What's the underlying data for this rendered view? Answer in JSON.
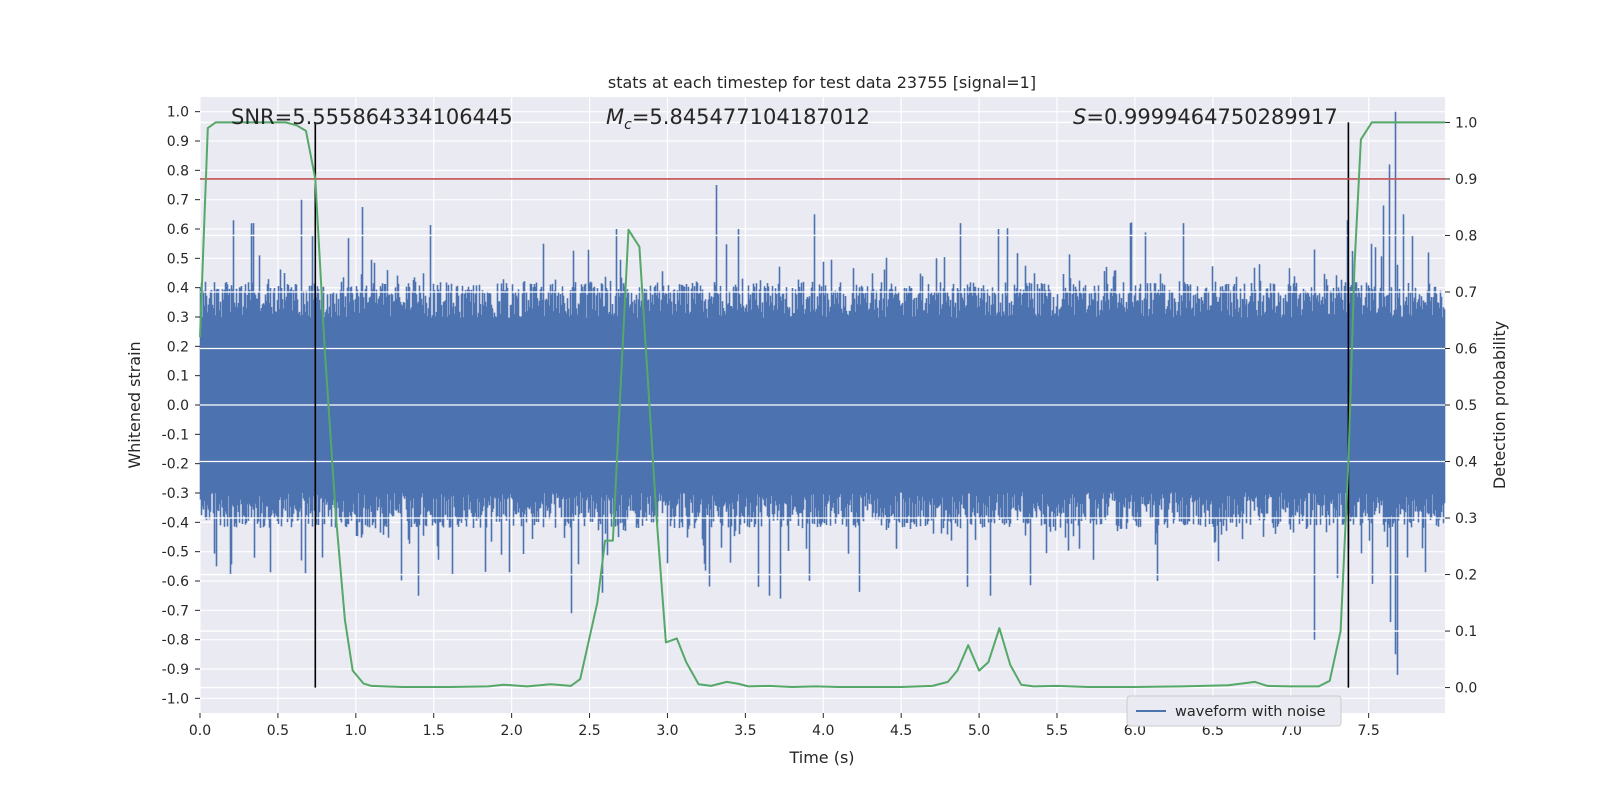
{
  "chart_data": {
    "type": "line",
    "title": "stats at each timestep for test data 23755 [signal=1]",
    "xlabel": "Time (s)",
    "ylabel": "Whitened strain",
    "y2label": "Detection probability",
    "xlim": [
      0,
      7.99
    ],
    "ylim": [
      -1.05,
      1.05
    ],
    "y2lim": [
      -0.045,
      1.045
    ],
    "xticks": [
      "0.0",
      "0.5",
      "1.0",
      "1.5",
      "2.0",
      "2.5",
      "3.0",
      "3.5",
      "4.0",
      "4.5",
      "5.0",
      "5.5",
      "6.0",
      "6.5",
      "7.0",
      "7.5"
    ],
    "yticks": [
      "1.0",
      "0.9",
      "0.8",
      "0.7",
      "0.6",
      "0.5",
      "0.4",
      "0.3",
      "0.2",
      "0.1",
      "0.0",
      "-0.1",
      "-0.2",
      "-0.3",
      "-0.4",
      "-0.5",
      "-0.6",
      "-0.7",
      "-0.8",
      "-0.9",
      "-1.0"
    ],
    "y2ticks": [
      "1.0",
      "0.9",
      "0.8",
      "0.7",
      "0.6",
      "0.5",
      "0.4",
      "0.3",
      "0.2",
      "0.1",
      "0.0"
    ],
    "grid": true,
    "legend_position": "lower-right",
    "annotations": {
      "snr_prefix": "SNR=",
      "snr_value": "5.555864334106445",
      "mc_sub": "c",
      "mc_value": "=5.845477104187012",
      "s_symbol": "S",
      "s_value": "=0.9999464750289917"
    },
    "threshold": {
      "axis": "y2",
      "value": 0.9,
      "color": "#c44e52"
    },
    "vertical_markers": [
      0.74,
      7.37
    ],
    "waveform": {
      "name": "waveform with noise",
      "color": "#4c72b0",
      "sample_rate": 2048,
      "duration": 7.99,
      "typical_envelope": [
        -0.35,
        0.35
      ],
      "peaks": [
        {
          "x": 0.03,
          "y": 0.42
        },
        {
          "x": 0.21,
          "y": 0.63
        },
        {
          "x": 0.34,
          "y": 0.62
        },
        {
          "x": 0.54,
          "y": 0.45
        },
        {
          "x": 0.65,
          "y": 0.7
        },
        {
          "x": 0.72,
          "y": 0.58
        },
        {
          "x": 1.2,
          "y": 0.46
        },
        {
          "x": 2.2,
          "y": 0.55
        },
        {
          "x": 2.67,
          "y": 0.6
        },
        {
          "x": 3.31,
          "y": 0.75
        },
        {
          "x": 3.45,
          "y": 0.6
        },
        {
          "x": 3.94,
          "y": 0.65
        },
        {
          "x": 4.88,
          "y": 0.62
        },
        {
          "x": 5.12,
          "y": 0.6
        },
        {
          "x": 5.97,
          "y": 0.62
        },
        {
          "x": 6.31,
          "y": 0.62
        },
        {
          "x": 7.15,
          "y": 0.53
        },
        {
          "x": 7.36,
          "y": 0.63
        },
        {
          "x": 7.59,
          "y": 0.68
        },
        {
          "x": 7.63,
          "y": 0.82
        },
        {
          "x": 7.67,
          "y": 1.0
        },
        {
          "x": 7.72,
          "y": 0.65
        },
        {
          "x": 7.78,
          "y": 0.58
        },
        {
          "x": 7.88,
          "y": 0.52
        }
      ],
      "troughs": [
        {
          "x": 0.1,
          "y": -0.55
        },
        {
          "x": 0.19,
          "y": -0.58
        },
        {
          "x": 0.45,
          "y": -0.57
        },
        {
          "x": 0.65,
          "y": -0.53
        },
        {
          "x": 0.78,
          "y": -0.52
        },
        {
          "x": 1.4,
          "y": -0.65
        },
        {
          "x": 1.62,
          "y": -0.58
        },
        {
          "x": 2.38,
          "y": -0.71
        },
        {
          "x": 2.58,
          "y": -0.64
        },
        {
          "x": 3.58,
          "y": -0.62
        },
        {
          "x": 3.65,
          "y": -0.65
        },
        {
          "x": 3.72,
          "y": -0.66
        },
        {
          "x": 4.92,
          "y": -0.62
        },
        {
          "x": 5.07,
          "y": -0.65
        },
        {
          "x": 6.14,
          "y": -0.6
        },
        {
          "x": 7.15,
          "y": -0.8
        },
        {
          "x": 7.3,
          "y": -0.59
        },
        {
          "x": 7.52,
          "y": -0.61
        },
        {
          "x": 7.64,
          "y": -0.74
        },
        {
          "x": 7.67,
          "y": -0.85
        },
        {
          "x": 7.68,
          "y": -0.92
        },
        {
          "x": 7.86,
          "y": -0.57
        }
      ]
    },
    "detection_probability": {
      "color": "#55a868",
      "points": [
        [
          0.0,
          0.62
        ],
        [
          0.05,
          0.99
        ],
        [
          0.1,
          1.0
        ],
        [
          0.3,
          1.0
        ],
        [
          0.45,
          1.0
        ],
        [
          0.55,
          1.0
        ],
        [
          0.62,
          0.995
        ],
        [
          0.68,
          0.985
        ],
        [
          0.74,
          0.9
        ],
        [
          0.8,
          0.6
        ],
        [
          0.87,
          0.31
        ],
        [
          0.93,
          0.12
        ],
        [
          0.98,
          0.03
        ],
        [
          1.05,
          0.007
        ],
        [
          1.1,
          0.003
        ],
        [
          1.3,
          0.001
        ],
        [
          1.6,
          0.001
        ],
        [
          1.85,
          0.002
        ],
        [
          1.95,
          0.005
        ],
        [
          2.1,
          0.002
        ],
        [
          2.25,
          0.006
        ],
        [
          2.38,
          0.003
        ],
        [
          2.44,
          0.015
        ],
        [
          2.55,
          0.15
        ],
        [
          2.6,
          0.26
        ],
        [
          2.65,
          0.26
        ],
        [
          2.75,
          0.81
        ],
        [
          2.82,
          0.78
        ],
        [
          2.93,
          0.3
        ],
        [
          2.99,
          0.08
        ],
        [
          3.06,
          0.087
        ],
        [
          3.12,
          0.045
        ],
        [
          3.2,
          0.006
        ],
        [
          3.28,
          0.003
        ],
        [
          3.38,
          0.01
        ],
        [
          3.45,
          0.007
        ],
        [
          3.52,
          0.002
        ],
        [
          3.65,
          0.003
        ],
        [
          3.8,
          0.001
        ],
        [
          3.95,
          0.002
        ],
        [
          4.1,
          0.001
        ],
        [
          4.5,
          0.001
        ],
        [
          4.7,
          0.003
        ],
        [
          4.8,
          0.01
        ],
        [
          4.86,
          0.03
        ],
        [
          4.93,
          0.075
        ],
        [
          5.0,
          0.03
        ],
        [
          5.06,
          0.045
        ],
        [
          5.13,
          0.105
        ],
        [
          5.2,
          0.04
        ],
        [
          5.27,
          0.005
        ],
        [
          5.35,
          0.002
        ],
        [
          5.5,
          0.003
        ],
        [
          5.7,
          0.001
        ],
        [
          6.0,
          0.001
        ],
        [
          6.3,
          0.002
        ],
        [
          6.6,
          0.004
        ],
        [
          6.77,
          0.01
        ],
        [
          6.85,
          0.003
        ],
        [
          7.0,
          0.002
        ],
        [
          7.18,
          0.002
        ],
        [
          7.25,
          0.012
        ],
        [
          7.32,
          0.1
        ],
        [
          7.37,
          0.4
        ],
        [
          7.41,
          0.75
        ],
        [
          7.45,
          0.97
        ],
        [
          7.52,
          1.0
        ],
        [
          7.6,
          1.0
        ],
        [
          7.99,
          1.0
        ]
      ]
    }
  }
}
